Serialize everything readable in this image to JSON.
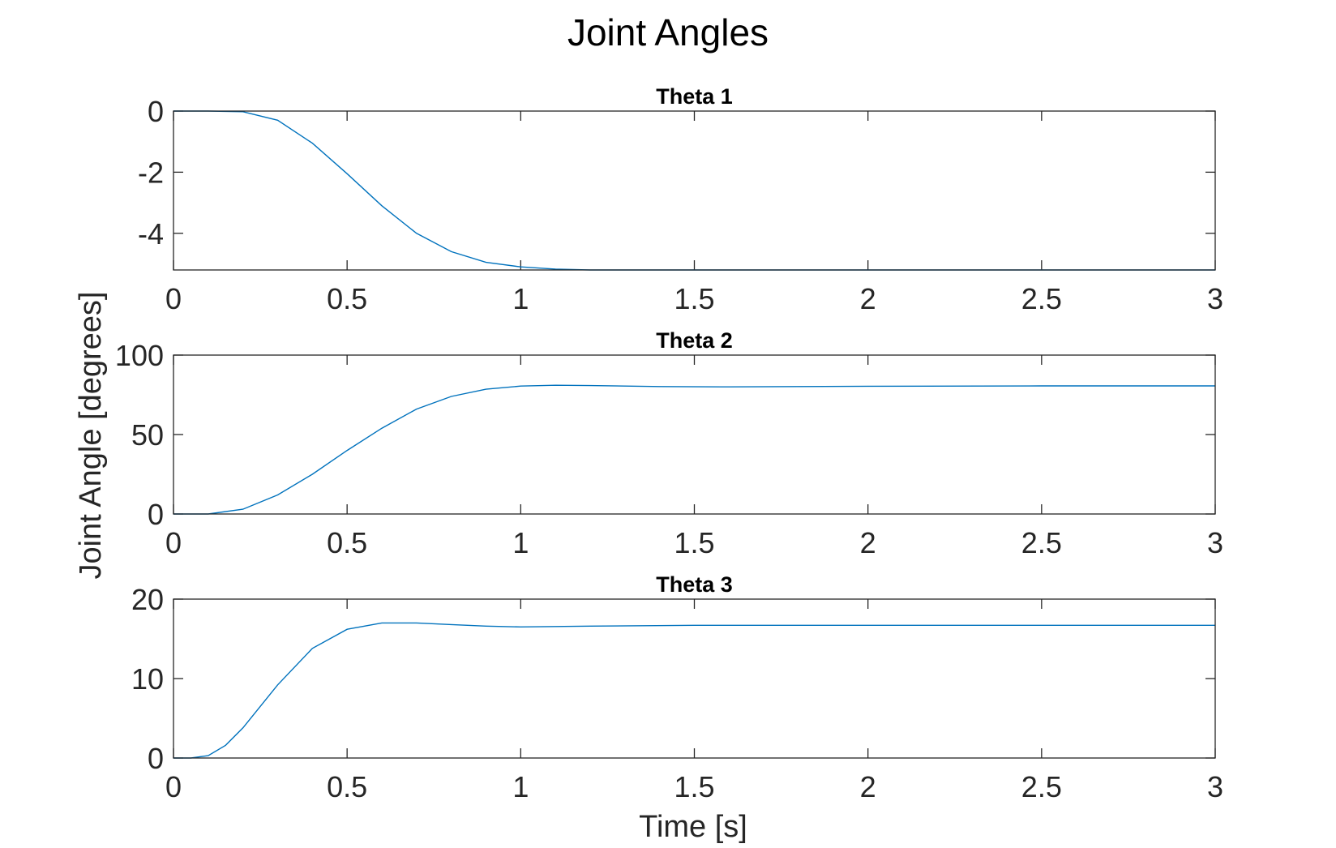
{
  "figure": {
    "title": "Joint Angles",
    "ylabel": "Joint Angle [degrees]",
    "xlabel": "Time [s]"
  },
  "chart_data": [
    {
      "type": "line",
      "title": "Theta 1",
      "xlim": [
        0,
        3
      ],
      "ylim": [
        -5.2,
        0
      ],
      "xticks": [
        "0",
        "0.5",
        "1",
        "1.5",
        "2",
        "2.5",
        "3"
      ],
      "yticks": [
        {
          "value": 0,
          "label": "0"
        },
        {
          "value": -2,
          "label": "-2"
        },
        {
          "value": -4,
          "label": "-4"
        }
      ],
      "color": "#0072BD",
      "grid": false,
      "series": [
        {
          "x": [
            0,
            0.1,
            0.2,
            0.3,
            0.4,
            0.5,
            0.6,
            0.7,
            0.8,
            0.9,
            1.0,
            1.1,
            1.2,
            1.3,
            1.5,
            2.0,
            2.5,
            3.0
          ],
          "values": [
            0,
            0,
            -0.02,
            -0.3,
            -1.05,
            -2.05,
            -3.1,
            -4.0,
            -4.6,
            -4.95,
            -5.1,
            -5.17,
            -5.2,
            -5.2,
            -5.2,
            -5.2,
            -5.2,
            -5.2
          ]
        }
      ]
    },
    {
      "type": "line",
      "title": "Theta 2",
      "xlim": [
        0,
        3
      ],
      "ylim": [
        0,
        100
      ],
      "xticks": [
        "0",
        "0.5",
        "1",
        "1.5",
        "2",
        "2.5",
        "3"
      ],
      "yticks": [
        {
          "value": 0,
          "label": "0"
        },
        {
          "value": 50,
          "label": "50"
        },
        {
          "value": 100,
          "label": "100"
        }
      ],
      "color": "#0072BD",
      "grid": false,
      "series": [
        {
          "x": [
            0,
            0.1,
            0.2,
            0.3,
            0.4,
            0.5,
            0.6,
            0.7,
            0.8,
            0.9,
            1.0,
            1.1,
            1.2,
            1.4,
            1.6,
            1.8,
            2.0,
            2.5,
            3.0
          ],
          "values": [
            0,
            0,
            3,
            12,
            25,
            40,
            54,
            66,
            74,
            78.5,
            80.5,
            81,
            80.8,
            80.2,
            80,
            80.2,
            80.4,
            80.6,
            80.6
          ]
        }
      ]
    },
    {
      "type": "line",
      "title": "Theta 3",
      "xlim": [
        0,
        3
      ],
      "ylim": [
        0,
        20
      ],
      "xticks": [
        "0",
        "0.5",
        "1",
        "1.5",
        "2",
        "2.5",
        "3"
      ],
      "yticks": [
        {
          "value": 0,
          "label": "0"
        },
        {
          "value": 10,
          "label": "10"
        },
        {
          "value": 20,
          "label": "20"
        }
      ],
      "color": "#0072BD",
      "grid": false,
      "series": [
        {
          "x": [
            0,
            0.05,
            0.1,
            0.15,
            0.2,
            0.3,
            0.4,
            0.5,
            0.6,
            0.7,
            0.8,
            0.9,
            1.0,
            1.2,
            1.5,
            2.0,
            2.5,
            3.0
          ],
          "values": [
            0,
            0,
            0.3,
            1.6,
            3.8,
            9.2,
            13.8,
            16.2,
            17,
            17,
            16.8,
            16.6,
            16.5,
            16.6,
            16.7,
            16.7,
            16.7,
            16.7
          ]
        }
      ]
    }
  ]
}
